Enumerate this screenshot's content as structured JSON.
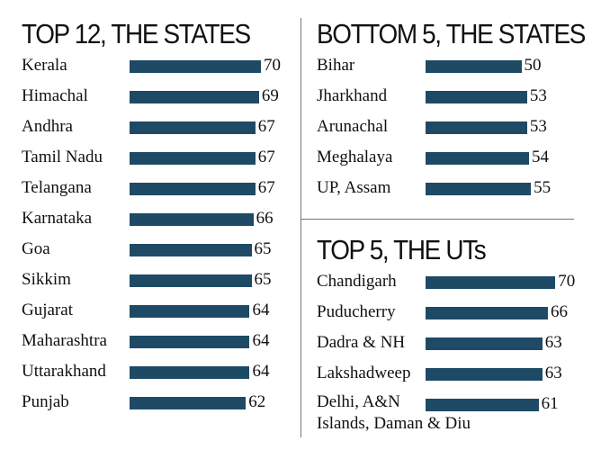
{
  "colors": {
    "bar": "#1e4a66"
  },
  "chart_data": [
    {
      "type": "bar",
      "orientation": "horizontal",
      "title": "TOP 12, THE STATES",
      "categories": [
        "Kerala",
        "Himachal",
        "Andhra",
        "Tamil Nadu",
        "Telangana",
        "Karnataka",
        "Goa",
        "Sikkim",
        "Gujarat",
        "Maharashtra",
        "Uttarakhand",
        "Punjab"
      ],
      "values": [
        70,
        69,
        67,
        67,
        67,
        66,
        65,
        65,
        64,
        64,
        64,
        62
      ]
    },
    {
      "type": "bar",
      "orientation": "horizontal",
      "title": "BOTTOM 5, THE STATES",
      "categories": [
        "Bihar",
        "Jharkhand",
        "Arunachal",
        "Meghalaya",
        "UP, Assam"
      ],
      "values": [
        50,
        53,
        53,
        54,
        55
      ]
    },
    {
      "type": "bar",
      "orientation": "horizontal",
      "title": "TOP 5, THE UTs",
      "categories": [
        "Chandigarh",
        "Puducherry",
        "Dadra & NH",
        "Lakshadweep",
        "Delhi, A&N Islands, Daman & Diu"
      ],
      "category_lines": [
        [
          "Chandigarh"
        ],
        [
          "Puducherry"
        ],
        [
          "Dadra & NH"
        ],
        [
          "Lakshadweep"
        ],
        [
          "Delhi, A&N",
          "Islands, Daman & Diu"
        ]
      ],
      "values": [
        70,
        66,
        63,
        63,
        61
      ]
    }
  ]
}
